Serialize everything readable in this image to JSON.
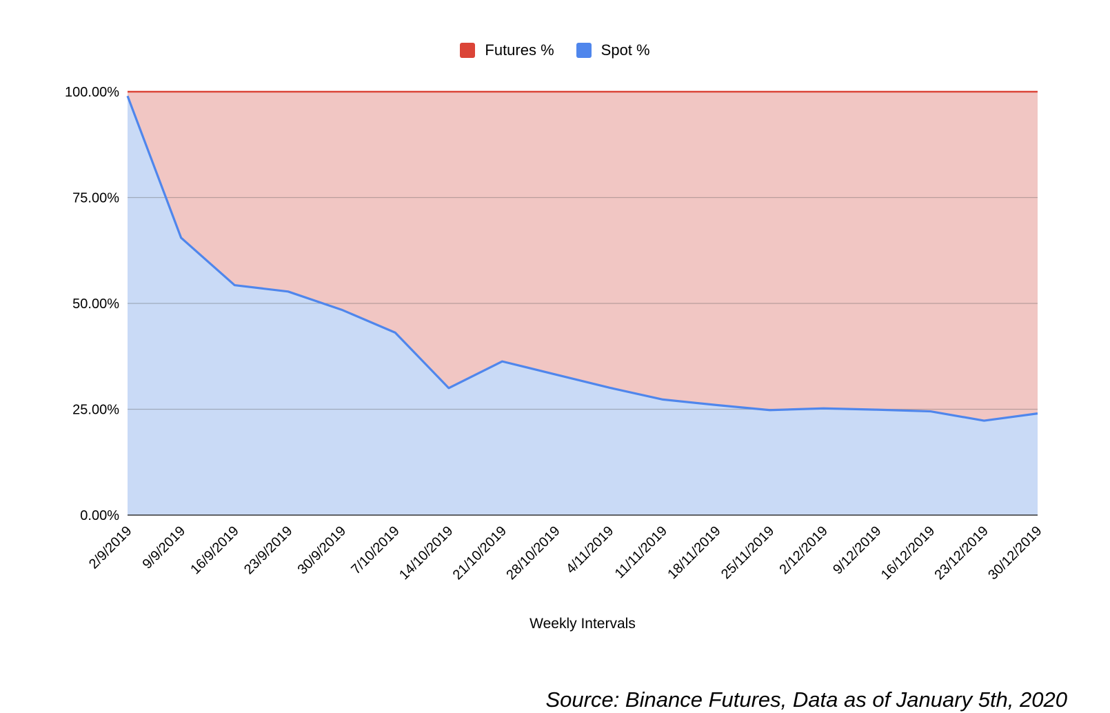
{
  "chart_data": {
    "type": "area",
    "stacked": true,
    "percent": true,
    "xlabel": "Weekly Intervals",
    "ylabel": "",
    "ylim": [
      0,
      100
    ],
    "y_ticks": [
      "0.00%",
      "25.00%",
      "50.00%",
      "75.00%",
      "100.00%"
    ],
    "grid": true,
    "legend_position": "top-center",
    "categories": [
      "2/9/2019",
      "9/9/2019",
      "16/9/2019",
      "23/9/2019",
      "30/9/2019",
      "7/10/2019",
      "14/10/2019",
      "21/10/2019",
      "28/10/2019",
      "4/11/2019",
      "11/11/2019",
      "18/11/2019",
      "25/11/2019",
      "2/12/2019",
      "9/12/2019",
      "16/12/2019",
      "23/12/2019",
      "30/12/2019"
    ],
    "series": [
      {
        "name": "Spot %",
        "color": "#4f86ec",
        "fill": "#c9daf6",
        "values": [
          99,
          65.5,
          54.3,
          52.8,
          48.5,
          43.1,
          30.0,
          36.3,
          33.2,
          30.1,
          27.3,
          26.0,
          24.8,
          25.2,
          24.9,
          24.5,
          22.3,
          24.0
        ]
      },
      {
        "name": "Futures %",
        "color": "#db4437",
        "fill": "#f1c6c3",
        "values": [
          1,
          34.5,
          45.7,
          47.2,
          51.5,
          56.9,
          70.0,
          63.7,
          66.8,
          69.9,
          72.7,
          74.0,
          75.2,
          74.8,
          75.1,
          75.5,
          77.7,
          76.0
        ]
      }
    ]
  },
  "legend": {
    "futures_label": "Futures %",
    "spot_label": "Spot %",
    "futures_color": "#db4437",
    "spot_color": "#4f86ec"
  },
  "source": "Source: Binance Futures, Data as of January 5th, 2020"
}
